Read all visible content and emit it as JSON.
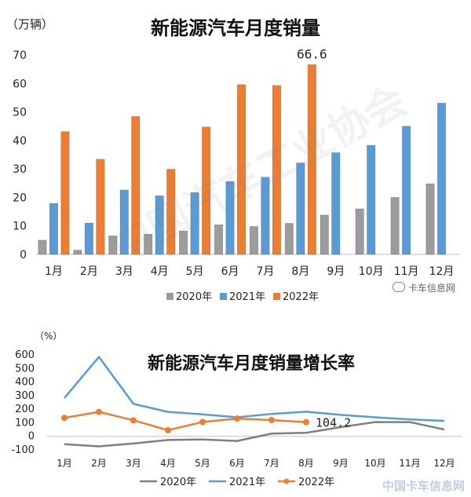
{
  "source": "卡车信息网",
  "corner_logo": "中国卡车信息网",
  "watermark_text": "中国汽车工业协会",
  "chart_data": [
    {
      "type": "bar",
      "title": "新能源汽车月度销量",
      "ylabel": "（万辆）",
      "ylim": [
        0,
        70
      ],
      "yticks": [
        0,
        10,
        20,
        30,
        40,
        50,
        60,
        70
      ],
      "categories": [
        "1月",
        "2月",
        "3月",
        "4月",
        "5月",
        "6月",
        "7月",
        "8月",
        "9月",
        "10月",
        "11月",
        "12月"
      ],
      "series": [
        {
          "name": "2020年",
          "color": "#9c9c9c",
          "values": [
            5.0,
            1.5,
            6.5,
            7.1,
            8.2,
            10.4,
            9.8,
            10.9,
            13.8,
            16.0,
            20.0,
            24.8
          ]
        },
        {
          "name": "2021年",
          "color": "#5b9bd5",
          "values": [
            17.9,
            11.0,
            22.6,
            20.6,
            21.7,
            25.6,
            27.1,
            32.1,
            35.7,
            38.3,
            45.0,
            53.1
          ]
        },
        {
          "name": "2022年",
          "color": "#ed7d31",
          "values": [
            43.1,
            33.4,
            48.4,
            29.9,
            44.7,
            59.6,
            59.3,
            66.6,
            null,
            null,
            null,
            null
          ]
        }
      ],
      "annotation": "66.6",
      "legend_position": "bottom"
    },
    {
      "type": "line",
      "title": "新能源汽车月度销量增长率",
      "ylabel": "（%）",
      "ylim": [
        -100,
        600
      ],
      "yticks": [
        -100,
        0,
        100,
        200,
        300,
        400,
        500,
        600
      ],
      "categories": [
        "1月",
        "2月",
        "3月",
        "4月",
        "5月",
        "6月",
        "7月",
        "8月",
        "9月",
        "10月",
        "11月",
        "12月"
      ],
      "series": [
        {
          "name": "2020年",
          "color": "#7f7f7f",
          "markers": false,
          "values": [
            -58,
            -74,
            -53,
            -27,
            -23,
            -34,
            20,
            26,
            68,
            105,
            105,
            50
          ]
        },
        {
          "name": "2021年",
          "color": "#5b9bd5",
          "markers": false,
          "values": [
            282,
            585,
            239,
            180,
            162,
            140,
            165,
            181,
            158,
            140,
            125,
            114
          ]
        },
        {
          "name": "2022年",
          "color": "#ed7d31",
          "markers": true,
          "values": [
            136,
            180,
            118,
            45,
            106,
            131,
            120,
            104.2,
            null,
            null,
            null,
            null
          ]
        }
      ],
      "annotation": "104.2",
      "legend_position": "bottom"
    }
  ]
}
